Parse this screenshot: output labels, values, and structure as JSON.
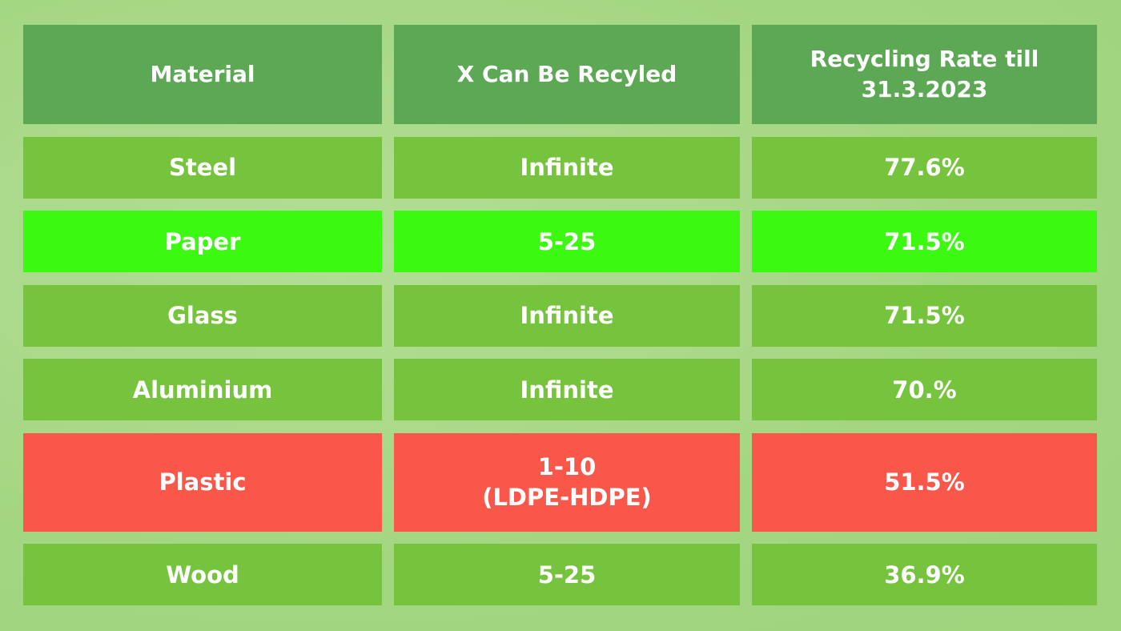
{
  "colors": {
    "header": "#5ca854",
    "default_row": "#76c43d",
    "highlight_good": "#3bf910",
    "highlight_bad": "#f8574a",
    "background": "#a6d785"
  },
  "table": {
    "headers": [
      "Material",
      "X Can Be Recyled",
      "Recycling Rate till\n31.3.2023"
    ],
    "rows": [
      {
        "style": "normal",
        "cells": [
          "Steel",
          "Infinite",
          "77.6%"
        ]
      },
      {
        "style": "paper",
        "cells": [
          "Paper",
          "5-25",
          "71.5%"
        ]
      },
      {
        "style": "normal",
        "cells": [
          "Glass",
          "Infinite",
          "71.5%"
        ]
      },
      {
        "style": "normal",
        "cells": [
          "Aluminium",
          "Infinite",
          "70.%"
        ]
      },
      {
        "style": "plastic",
        "cells": [
          "Plastic",
          "1-10\n(LDPE-HDPE)",
          "51.5%"
        ]
      },
      {
        "style": "normal",
        "cells": [
          "Wood",
          "5-25",
          "36.9%"
        ]
      }
    ]
  }
}
